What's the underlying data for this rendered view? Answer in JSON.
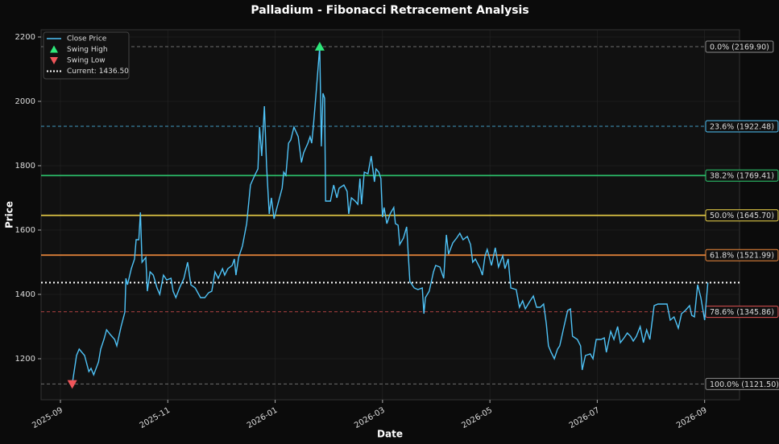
{
  "chart_data": {
    "type": "line",
    "title": "Palladium - Fibonacci Retracement Analysis",
    "xlabel": "Date",
    "ylabel": "Price",
    "x": [
      0.22,
      0.3,
      0.35,
      0.45,
      0.53,
      0.57,
      0.62,
      0.71,
      0.75,
      0.81,
      0.86,
      0.93,
      1.01,
      1.05,
      1.13,
      1.2,
      1.22,
      1.25,
      1.32,
      1.38,
      1.41,
      1.46,
      1.49,
      1.52,
      1.59,
      1.62,
      1.67,
      1.73,
      1.8,
      1.85,
      1.92,
      1.98,
      2.06,
      2.1,
      2.15,
      2.22,
      2.3,
      2.37,
      2.43,
      2.51,
      2.61,
      2.69,
      2.76,
      2.82,
      2.88,
      2.94,
      3.02,
      3.06,
      3.12,
      3.2,
      3.24,
      3.27,
      3.32,
      3.39,
      3.47,
      3.54,
      3.62,
      3.68,
      3.71,
      3.75,
      3.8,
      3.84,
      3.89,
      3.93,
      3.98,
      4.05,
      4.13,
      4.16,
      4.2,
      4.25,
      4.29,
      4.35,
      4.43,
      4.49,
      4.53,
      4.61,
      4.65,
      4.68,
      4.71,
      4.76,
      4.83,
      4.86,
      4.89,
      4.92,
      4.94,
      5.03,
      5.09,
      5.15,
      5.19,
      5.28,
      5.34,
      5.37,
      5.42,
      5.49,
      5.54,
      5.58,
      5.61,
      5.66,
      5.73,
      5.79,
      5.85,
      5.88,
      5.93,
      5.97,
      6.0,
      6.03,
      6.08,
      6.14,
      6.21,
      6.24,
      6.29,
      6.32,
      6.39,
      6.45,
      6.51,
      6.59,
      6.66,
      6.74,
      6.77,
      6.8,
      6.87,
      6.95,
      6.99,
      7.07,
      7.14,
      7.19,
      7.23,
      7.31,
      7.38,
      7.44,
      7.5,
      7.58,
      7.64,
      7.68,
      7.73,
      7.82,
      7.86,
      7.91,
      7.95,
      8.03,
      8.1,
      8.16,
      8.24,
      8.28,
      8.34,
      8.39,
      8.49,
      8.55,
      8.61,
      8.66,
      8.75,
      8.81,
      8.87,
      8.94,
      9.0,
      9.05,
      9.09,
      9.14,
      9.2,
      9.26,
      9.3,
      9.38,
      9.45,
      9.5,
      9.54,
      9.63,
      9.69,
      9.72,
      9.78,
      9.87,
      9.92,
      9.98,
      10.07,
      10.13,
      10.17,
      10.25,
      10.31,
      10.38,
      10.43,
      10.5,
      10.56,
      10.62,
      10.67,
      10.73,
      10.8,
      10.86,
      10.92,
      10.98,
      11.06,
      11.13,
      11.22,
      11.3,
      11.36,
      11.43,
      11.51,
      11.57,
      11.64,
      11.72,
      11.76,
      11.81,
      11.87,
      11.93,
      12.0,
      12.06
    ],
    "series": [
      {
        "name": "Close Price",
        "color": "#4fc3f7",
        "values": [
          1121.5,
          1210,
          1230,
          1210,
          1160,
          1170,
          1150,
          1190,
          1230,
          1260,
          1290,
          1275,
          1260,
          1240,
          1300,
          1345,
          1450,
          1430,
          1480,
          1510,
          1570,
          1570,
          1655,
          1500,
          1515,
          1410,
          1470,
          1460,
          1420,
          1400,
          1460,
          1445,
          1450,
          1410,
          1390,
          1420,
          1450,
          1500,
          1430,
          1420,
          1390,
          1390,
          1405,
          1410,
          1470,
          1450,
          1480,
          1460,
          1480,
          1490,
          1510,
          1460,
          1515,
          1550,
          1620,
          1740,
          1770,
          1790,
          1920,
          1830,
          1985,
          1800,
          1650,
          1700,
          1635,
          1680,
          1730,
          1780,
          1770,
          1870,
          1880,
          1920,
          1890,
          1810,
          1840,
          1870,
          1890,
          1870,
          1920,
          2020,
          2169.9,
          1860,
          2025,
          2010,
          1690,
          1690,
          1740,
          1700,
          1730,
          1740,
          1720,
          1650,
          1700,
          1690,
          1680,
          1760,
          1680,
          1780,
          1775,
          1830,
          1750,
          1790,
          1780,
          1760,
          1640,
          1670,
          1620,
          1650,
          1670,
          1620,
          1615,
          1555,
          1575,
          1610,
          1440,
          1420,
          1415,
          1420,
          1340,
          1390,
          1410,
          1470,
          1490,
          1485,
          1450,
          1585,
          1525,
          1560,
          1575,
          1590,
          1570,
          1580,
          1555,
          1500,
          1510,
          1480,
          1460,
          1520,
          1540,
          1490,
          1545,
          1485,
          1520,
          1480,
          1510,
          1420,
          1415,
          1360,
          1380,
          1355,
          1380,
          1395,
          1360,
          1360,
          1370,
          1310,
          1240,
          1220,
          1200,
          1230,
          1240,
          1300,
          1350,
          1355,
          1270,
          1260,
          1240,
          1165,
          1210,
          1215,
          1200,
          1260,
          1260,
          1265,
          1220,
          1285,
          1260,
          1300,
          1250,
          1265,
          1280,
          1270,
          1255,
          1270,
          1300,
          1250,
          1290,
          1260,
          1365,
          1370,
          1370,
          1370,
          1320,
          1330,
          1295,
          1340,
          1350,
          1365,
          1335,
          1330,
          1430,
          1390,
          1320,
          1436.5
        ]
      }
    ],
    "markers": [
      {
        "name": "Swing High",
        "color": "#2ee87a",
        "shape": "up",
        "x": 4.83,
        "value": 2169.9
      },
      {
        "name": "Swing Low",
        "color": "#f0555a",
        "shape": "down",
        "x": 0.22,
        "value": 1121.5
      }
    ],
    "current": {
      "name": "Current: 1436.50",
      "value": 1436.5,
      "color": "#ffffff"
    },
    "levels": [
      {
        "label": "0.0% (2169.90)",
        "value": 2169.9,
        "color": "#8c8c8c",
        "dashed": true
      },
      {
        "label": "23.6% (1922.48)",
        "value": 1922.48,
        "color": "#4fc3f7",
        "dashed": true
      },
      {
        "label": "38.2% (1769.41)",
        "value": 1769.41,
        "color": "#2ecc71",
        "dashed": false
      },
      {
        "label": "50.0% (1645.70)",
        "value": 1645.7,
        "color": "#f1d74a",
        "dashed": false
      },
      {
        "label": "61.8% (1521.99)",
        "value": 1521.99,
        "color": "#ef8a3c",
        "dashed": false
      },
      {
        "label": "78.6% (1345.86)",
        "value": 1345.86,
        "color": "#e05252",
        "dashed": true
      },
      {
        "label": "100.0% (1121.50)",
        "value": 1121.5,
        "color": "#8c8c8c",
        "dashed": true
      }
    ],
    "xlim": [
      -0.36,
      12.65
    ],
    "xticks": [
      {
        "value": 0,
        "label": "2025-09"
      },
      {
        "value": 2,
        "label": "2025-11"
      },
      {
        "value": 4,
        "label": "2026-01"
      },
      {
        "value": 6,
        "label": "2026-03"
      },
      {
        "value": 8,
        "label": "2026-05"
      },
      {
        "value": 10,
        "label": "2026-07"
      },
      {
        "value": 12,
        "label": "2026-09"
      }
    ],
    "ylim": [
      1072.5,
      2222.5
    ],
    "yticks": [
      1200,
      1400,
      1600,
      1800,
      2000,
      2200
    ],
    "grid": true
  }
}
